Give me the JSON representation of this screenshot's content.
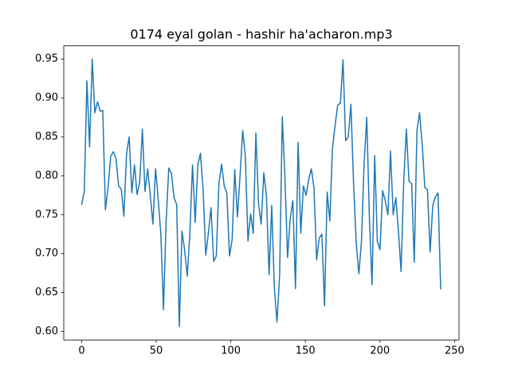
{
  "chart_data": {
    "type": "line",
    "title": "0174 eyal golan - hashir ha'acharon.mp3",
    "x": [
      0,
      1.77,
      3.54,
      5.31,
      7.08,
      8.85,
      10.62,
      12.39,
      14.16,
      15.93,
      17.7,
      19.47,
      21.24,
      23.01,
      24.78,
      26.55,
      28.32,
      30.09,
      31.86,
      33.63,
      35.4,
      37.17,
      38.94,
      40.71,
      42.48,
      44.25,
      46.02,
      47.79,
      49.56,
      51.33,
      53.1,
      54.87,
      56.64,
      58.41,
      60.18,
      61.95,
      63.72,
      65.49,
      67.26,
      69.03,
      70.8,
      72.57,
      74.34,
      76.11,
      77.88,
      79.65,
      81.42,
      83.19,
      84.96,
      86.73,
      88.5,
      90.27,
      92.04,
      93.81,
      95.58,
      97.35,
      99.12,
      100.89,
      102.66,
      104.43,
      106.2,
      107.97,
      109.74,
      111.51,
      113.28,
      115.05,
      116.82,
      118.59,
      120.36,
      122.13,
      123.9,
      125.67,
      127.44,
      129.21,
      130.98,
      132.75,
      134.52,
      136.29,
      138.06,
      139.83,
      141.6,
      143.37,
      145.14,
      146.91,
      148.68,
      150.45,
      152.22,
      153.99,
      155.76,
      157.53,
      159.3,
      161.07,
      162.84,
      164.61,
      166.38,
      168.15,
      169.92,
      171.69,
      173.46,
      175.23,
      177,
      178.77,
      180.54,
      182.31,
      184.08,
      185.85,
      187.62,
      189.39,
      191.16,
      192.93,
      194.7,
      196.47,
      198.24,
      200.01,
      201.78,
      203.55,
      205.32,
      207.09,
      208.86,
      210.63,
      212.4,
      214.17,
      215.94,
      217.71,
      219.48,
      221.25,
      223.02,
      224.79,
      226.56,
      228.33,
      230.1,
      231.87,
      233.64,
      235.41,
      237.18,
      238.95,
      240.72
    ],
    "series": [
      {
        "color": "#1f77b4",
        "values": [
          0.763,
          0.78,
          0.922,
          0.837,
          0.95,
          0.881,
          0.895,
          0.883,
          0.884,
          0.756,
          0.785,
          0.825,
          0.831,
          0.822,
          0.787,
          0.783,
          0.748,
          0.828,
          0.85,
          0.778,
          0.814,
          0.776,
          0.792,
          0.86,
          0.78,
          0.809,
          0.775,
          0.738,
          0.809,
          0.77,
          0.725,
          0.628,
          0.741,
          0.81,
          0.803,
          0.772,
          0.763,
          0.606,
          0.729,
          0.705,
          0.671,
          0.727,
          0.814,
          0.74,
          0.814,
          0.829,
          0.783,
          0.698,
          0.726,
          0.759,
          0.69,
          0.697,
          0.79,
          0.815,
          0.787,
          0.778,
          0.697,
          0.718,
          0.808,
          0.747,
          0.8,
          0.858,
          0.826,
          0.716,
          0.751,
          0.726,
          0.855,
          0.764,
          0.738,
          0.804,
          0.774,
          0.673,
          0.762,
          0.656,
          0.612,
          0.673,
          0.876,
          0.798,
          0.695,
          0.745,
          0.768,
          0.655,
          0.843,
          0.726,
          0.787,
          0.775,
          0.795,
          0.809,
          0.785,
          0.692,
          0.72,
          0.725,
          0.633,
          0.779,
          0.742,
          0.835,
          0.865,
          0.891,
          0.893,
          0.949,
          0.845,
          0.85,
          0.892,
          0.79,
          0.714,
          0.674,
          0.716,
          0.817,
          0.875,
          0.745,
          0.66,
          0.826,
          0.716,
          0.705,
          0.781,
          0.768,
          0.75,
          0.832,
          0.75,
          0.772,
          0.729,
          0.677,
          0.793,
          0.86,
          0.793,
          0.79,
          0.689,
          0.858,
          0.881,
          0.84,
          0.785,
          0.782,
          0.702,
          0.762,
          0.773,
          0.778,
          0.654
        ]
      }
    ],
    "xlim": [
      -12,
      253
    ],
    "xticks": [
      0,
      50,
      100,
      150,
      200,
      250
    ],
    "ylim": [
      0.589,
      0.967
    ],
    "yticks": [
      {
        "value": 0.6,
        "label": "0.60"
      },
      0.65,
      {
        "value": 0.7,
        "label": "0.70"
      },
      0.75,
      {
        "value": 0.8,
        "label": "0.80"
      },
      0.85,
      {
        "value": 0.9,
        "label": "0.90"
      },
      0.95
    ],
    "grid": false
  }
}
